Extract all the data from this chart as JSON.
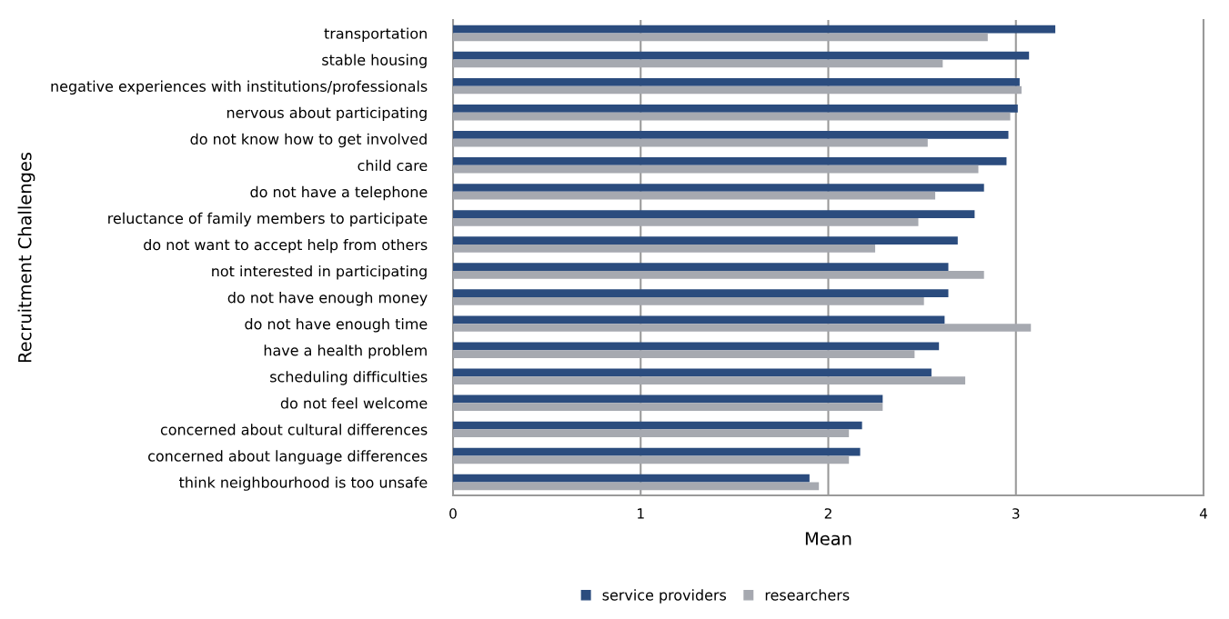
{
  "chart_data": {
    "type": "bar",
    "orientation": "horizontal",
    "xlabel": "Mean",
    "ylabel": "Recruitment Challenges",
    "categories": [
      "transportation",
      "stable housing",
      "negative experiences with institutions/professionals",
      "nervous about participating",
      "do not know how to get involved",
      "child care",
      "do not have a telephone",
      "reluctance of family members to participate",
      "do not want to accept help from others",
      "not interested in participating",
      "do not have enough money",
      "do not have enough time",
      "have a health problem",
      "scheduling difficulties",
      "do not feel welcome",
      "concerned about cultural differences",
      "concerned about language differences",
      "think neighbourhood is too unsafe"
    ],
    "series": [
      {
        "name": "service providers",
        "color": "#2b4c7e",
        "values": [
          3.21,
          3.07,
          3.02,
          3.01,
          2.96,
          2.95,
          2.83,
          2.78,
          2.69,
          2.64,
          2.64,
          2.62,
          2.59,
          2.55,
          2.29,
          2.18,
          2.17,
          1.9
        ]
      },
      {
        "name": "researchers",
        "color": "#a6a9b0",
        "values": [
          2.85,
          2.61,
          3.03,
          2.97,
          2.53,
          2.8,
          2.57,
          2.48,
          2.25,
          2.83,
          2.51,
          3.08,
          2.46,
          2.73,
          2.29,
          2.11,
          2.11,
          1.95
        ]
      }
    ],
    "xlim": [
      0,
      4
    ],
    "xticks": [
      0,
      1,
      2,
      3,
      4
    ],
    "grid": "x",
    "legend": "bottom"
  }
}
